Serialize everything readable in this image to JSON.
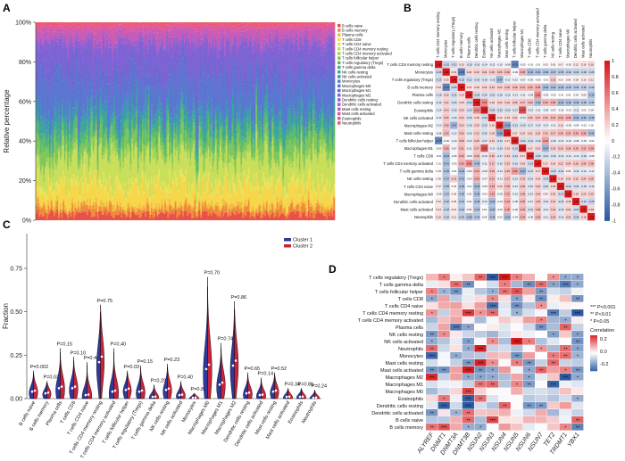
{
  "panels": {
    "a": "A",
    "b": "B",
    "c": "C",
    "d": "D"
  },
  "colors": {
    "cluster1": "#2b3a9c",
    "cluster2": "#c7233a",
    "heat_pos": "#d7191c",
    "heat_neg": "#2c5aa0",
    "heat_mid": "#ffffff"
  },
  "chart_data": [
    {
      "type": "bar",
      "subtype": "stacked-100",
      "panel": "A",
      "ylabel": "Relative percentage",
      "yticks": [
        "0%",
        "20%",
        "40%",
        "60%",
        "80%",
        "100%"
      ],
      "ylim": [
        0,
        100
      ],
      "n_samples": 200,
      "series": [
        {
          "name": "B cells naive",
          "color": "#e8504a"
        },
        {
          "name": "B cells memory",
          "color": "#f08a3c"
        },
        {
          "name": "Plasma cells",
          "color": "#f4b942"
        },
        {
          "name": "T cells CD8",
          "color": "#f6d64a"
        },
        {
          "name": "T cells CD4 naive",
          "color": "#e9e45a"
        },
        {
          "name": "T cells CD4 memory resting",
          "color": "#c9df5b"
        },
        {
          "name": "T cells CD4 memory activated",
          "color": "#a6d45a"
        },
        {
          "name": "T cells follicular helper",
          "color": "#7fc65e"
        },
        {
          "name": "T cells regulatory (Tregs)",
          "color": "#5dbb6c"
        },
        {
          "name": "T cells gamma delta",
          "color": "#4aae86"
        },
        {
          "name": "NK cells resting",
          "color": "#3fa39e"
        },
        {
          "name": "NK cells activated",
          "color": "#3d95b5"
        },
        {
          "name": "Monocytes",
          "color": "#4b87c8"
        },
        {
          "name": "Macrophages M0",
          "color": "#5a77cf"
        },
        {
          "name": "Macrophages M1",
          "color": "#6a6ad3"
        },
        {
          "name": "Macrophages M2",
          "color": "#7d63d4"
        },
        {
          "name": "Dendritic cells resting",
          "color": "#9560cf"
        },
        {
          "name": "Dendritic cells activated",
          "color": "#ac5ec6"
        },
        {
          "name": "Mast cells resting",
          "color": "#c65cb8"
        },
        {
          "name": "Mast cells activated",
          "color": "#dc5ba2"
        },
        {
          "name": "Eosinophils",
          "color": "#e75986"
        },
        {
          "name": "Neutrophils",
          "color": "#ee5868"
        }
      ]
    },
    {
      "type": "heatmap",
      "panel": "B",
      "labels": [
        "T cells CD4 memory resting",
        "Monocytes",
        "T cells regulatory (Tregs)",
        "B cells memory",
        "Plasma cells",
        "Dendritic cells resting",
        "Eosinophils",
        "NK cells activated",
        "Macrophages M2",
        "Mast cells resting",
        "T cells follicular helper",
        "Macrophages M1",
        "T cells CD8",
        "T cells CD4 memory activated",
        "T cells gamma delta",
        "NK cells resting",
        "T cells CD4 naive",
        "Macrophages M0",
        "Dendritic cells activated",
        "Mast cells activated",
        "Neutrophils"
      ],
      "colorbar_ticks": [
        "1",
        "0.8",
        "0.6",
        "0.4",
        "0.2",
        "0",
        "-0.2",
        "-0.4",
        "-0.6",
        "-0.8",
        "-1"
      ],
      "range": [
        -1,
        1
      ]
    },
    {
      "type": "violin",
      "panel": "C",
      "ylabel": "Fraction",
      "yticks": [
        "0.00",
        "0.25",
        "0.50",
        "0.75"
      ],
      "ylim": [
        0,
        0.95
      ],
      "legend": [
        "Cluster 1",
        "Cluster 2"
      ],
      "legend_position": "top-right",
      "categories": [
        "B cells naive",
        "B cells memory",
        "Plasma cells",
        "T cells CD8",
        "T cells CD4 naive",
        "T cells CD4 memory resting",
        "T cells CD4 memory activated",
        "T cells follicular helper",
        "T cells regulatory (Tregs)",
        "T cells gamma delta",
        "NK cells resting",
        "NK cells activated",
        "Monocytes",
        "Macrophages M0",
        "Macrophages M1",
        "Macrophages M2",
        "Dendritic cells resting",
        "Dendritic cells activated",
        "Mast cells resting",
        "Mast cells activated",
        "Eosinophils",
        "Neutrophils"
      ],
      "pvalues": [
        "P=0.002",
        "P=0.03",
        "P=0.15",
        "P=0.10",
        "P=0.480",
        "P=0.75",
        "P=0.40",
        "P=0.03",
        "P=0.15",
        "P=0.29",
        "P=0.23",
        "P=0.40",
        "P=0.87",
        "P=0.70",
        "P=0.74",
        "P=0.86",
        "P=0.65",
        "P=0.14",
        "P=0.52",
        "P=0.34",
        "P=0.86",
        "P=0.24"
      ],
      "maxima": [
        0.16,
        0.1,
        0.29,
        0.24,
        0.21,
        0.54,
        0.29,
        0.16,
        0.19,
        0.08,
        0.2,
        0.1,
        0.03,
        0.7,
        0.32,
        0.56,
        0.15,
        0.12,
        0.15,
        0.06,
        0.06,
        0.05
      ],
      "medians": [
        0.04,
        0.03,
        0.06,
        0.06,
        0.02,
        0.21,
        0.04,
        0.05,
        0.04,
        0.01,
        0.05,
        0.02,
        0.005,
        0.17,
        0.08,
        0.19,
        0.03,
        0.02,
        0.04,
        0.01,
        0.01,
        0.005
      ]
    },
    {
      "type": "heatmap",
      "panel": "D",
      "rows": [
        "T cells regulatory (Tregs)",
        "T cells gamma delta",
        "T cells follicular helper",
        "T cells CD8",
        "T cells CD4 naive",
        "T cells CD4 memory resting",
        "T cells CD4 memory activated",
        "Plasma cells",
        "NK cells resting",
        "NK cells activated",
        "Neutrophils",
        "Monocytes",
        "Mast cells resting",
        "Mast cells activated",
        "Macrophages M2",
        "Macrophages M1",
        "Macrophages M0",
        "Eosinophils",
        "Dendritic cells resting",
        "Dendritic cells activated",
        "B cells naive",
        "B cells memory"
      ],
      "columns": [
        "ALYREF",
        "DNMT1",
        "DNMT3A",
        "DNMT3B",
        "NSUN2",
        "NSUN3",
        "NSUN4",
        "NSUN5",
        "NSUN6",
        "NSUN7",
        "TET2",
        "TRDMT1",
        "YBX1"
      ],
      "legend": {
        "title": "Correlation",
        "ticks": [
          "0.2",
          "0.0",
          "-0.2"
        ],
        "sig": [
          "*** P<0.001",
          "** P<0.01",
          "* P<0.05"
        ]
      }
    }
  ]
}
